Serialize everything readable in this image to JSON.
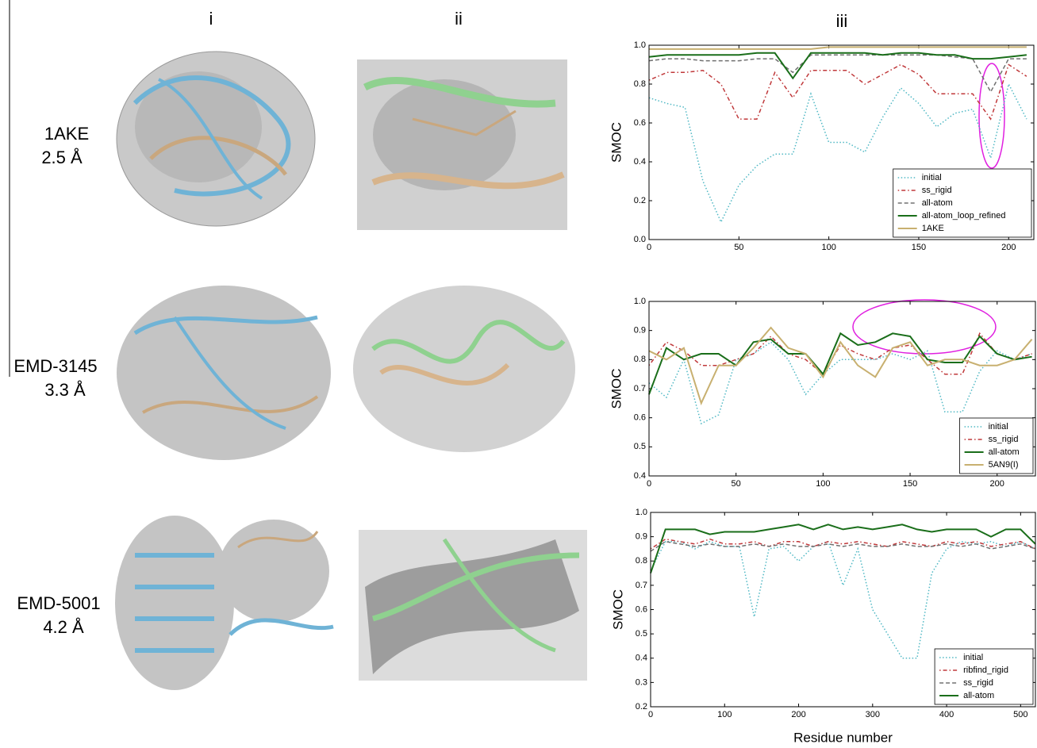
{
  "columns": [
    "i",
    "ii",
    "iii"
  ],
  "rows": [
    {
      "name": "1AKE",
      "resolution": "2.5 Å"
    },
    {
      "name": "EMD-3145",
      "resolution": "3.3 Å"
    },
    {
      "name": "EMD-5001",
      "resolution": "4.2 Å"
    }
  ],
  "chart_data": [
    {
      "type": "line",
      "ylabel": "SMOC",
      "legend": "lower right",
      "x": [
        0,
        10,
        20,
        30,
        40,
        50,
        60,
        70,
        80,
        90,
        100,
        110,
        120,
        130,
        140,
        150,
        160,
        170,
        180,
        190,
        200,
        210
      ],
      "xlim": [
        0,
        214
      ],
      "xticks": [
        0,
        50,
        100,
        150,
        200
      ],
      "ylim": [
        0,
        1
      ],
      "yticks": [
        {
          "value": 0,
          "label": "0.0"
        },
        0.2,
        0.4,
        0.6,
        0.8,
        {
          "value": 1,
          "label": "1.0"
        }
      ],
      "series": [
        {
          "name": "initial",
          "color": "#4fb8c4",
          "linestyle": "dotted",
          "values": [
            0.73,
            0.7,
            0.68,
            0.3,
            0.09,
            0.28,
            0.38,
            0.44,
            0.44,
            0.75,
            0.5,
            0.5,
            0.45,
            0.63,
            0.78,
            0.7,
            0.58,
            0.65,
            0.67,
            0.42,
            0.8,
            0.62
          ]
        },
        {
          "name": "ss_rigid",
          "color": "#c0393b",
          "linestyle": "dashdot",
          "values": [
            0.82,
            0.86,
            0.86,
            0.87,
            0.8,
            0.62,
            0.62,
            0.86,
            0.73,
            0.87,
            0.87,
            0.87,
            0.8,
            0.85,
            0.9,
            0.85,
            0.75,
            0.75,
            0.75,
            0.62,
            0.9,
            0.84
          ]
        },
        {
          "name": "all-atom",
          "color": "#707070",
          "linestyle": "dashed",
          "values": [
            0.92,
            0.93,
            0.93,
            0.92,
            0.92,
            0.92,
            0.93,
            0.93,
            0.86,
            0.95,
            0.95,
            0.95,
            0.95,
            0.95,
            0.95,
            0.95,
            0.95,
            0.94,
            0.93,
            0.76,
            0.93,
            0.93
          ]
        },
        {
          "name": "all-atom_loop_refined",
          "color": "#1a6e1a",
          "linestyle": "solid",
          "values": [
            0.94,
            0.95,
            0.95,
            0.95,
            0.95,
            0.95,
            0.96,
            0.96,
            0.83,
            0.96,
            0.96,
            0.96,
            0.96,
            0.95,
            0.96,
            0.96,
            0.95,
            0.95,
            0.93,
            0.93,
            0.94,
            0.95
          ]
        },
        {
          "name": "1AKE",
          "color": "#c8b070",
          "linestyle": "solid",
          "values": [
            0.98,
            0.98,
            0.98,
            0.98,
            0.98,
            0.98,
            0.98,
            0.98,
            0.98,
            0.98,
            0.99,
            0.99,
            0.99,
            0.99,
            0.99,
            0.99,
            0.99,
            0.99,
            0.99,
            0.99,
            0.99,
            0.99
          ]
        }
      ]
    },
    {
      "type": "line",
      "ylabel": "SMOC",
      "legend": "lower right",
      "x": [
        0,
        10,
        20,
        30,
        40,
        50,
        60,
        70,
        80,
        90,
        100,
        110,
        120,
        130,
        140,
        150,
        160,
        170,
        180,
        190,
        200,
        210,
        220
      ],
      "xlim": [
        0,
        222
      ],
      "xticks": [
        0,
        50,
        100,
        150,
        200
      ],
      "ylim": [
        0.4,
        1
      ],
      "yticks": [
        0.4,
        0.5,
        0.6,
        0.7,
        0.8,
        0.9,
        {
          "value": 1,
          "label": "1.0"
        }
      ],
      "series": [
        {
          "name": "initial",
          "color": "#4fb8c4",
          "linestyle": "dotted",
          "values": [
            0.72,
            0.67,
            0.8,
            0.58,
            0.61,
            0.8,
            0.82,
            0.86,
            0.8,
            0.68,
            0.75,
            0.8,
            0.8,
            0.8,
            0.82,
            0.8,
            0.83,
            0.62,
            0.62,
            0.76,
            0.83,
            0.8,
            0.82
          ]
        },
        {
          "name": "ss_rigid",
          "color": "#c0393b",
          "linestyle": "dashdot",
          "values": [
            0.78,
            0.86,
            0.83,
            0.78,
            0.78,
            0.8,
            0.82,
            0.88,
            0.82,
            0.8,
            0.75,
            0.85,
            0.82,
            0.8,
            0.84,
            0.85,
            0.8,
            0.75,
            0.75,
            0.89,
            0.82,
            0.8,
            0.82
          ]
        },
        {
          "name": "all-atom",
          "color": "#1a6e1a",
          "linestyle": "solid",
          "values": [
            0.68,
            0.84,
            0.8,
            0.82,
            0.82,
            0.78,
            0.86,
            0.87,
            0.82,
            0.82,
            0.75,
            0.89,
            0.85,
            0.86,
            0.89,
            0.88,
            0.8,
            0.79,
            0.79,
            0.88,
            0.82,
            0.8,
            0.81
          ]
        },
        {
          "name": "5AN9(I)",
          "color": "#c8b070",
          "linestyle": "solid",
          "values": [
            0.83,
            0.8,
            0.84,
            0.65,
            0.78,
            0.78,
            0.84,
            0.91,
            0.84,
            0.82,
            0.74,
            0.86,
            0.78,
            0.74,
            0.84,
            0.86,
            0.78,
            0.8,
            0.8,
            0.78,
            0.78,
            0.8,
            0.87
          ]
        }
      ]
    },
    {
      "type": "line",
      "ylabel": "SMOC",
      "xlabel": "Residue number",
      "legend": "lower right",
      "x": [
        0,
        20,
        40,
        60,
        80,
        100,
        120,
        140,
        160,
        180,
        200,
        220,
        240,
        260,
        280,
        300,
        320,
        340,
        360,
        380,
        400,
        420,
        440,
        460,
        480,
        500,
        520
      ],
      "xlim": [
        0,
        520
      ],
      "xticks": [
        0,
        100,
        200,
        300,
        400,
        500
      ],
      "ylim": [
        0.2,
        1
      ],
      "yticks": [
        0.2,
        0.3,
        0.4,
        0.5,
        0.6,
        0.7,
        0.8,
        0.9,
        {
          "value": 1,
          "label": "1.0"
        }
      ],
      "series": [
        {
          "name": "initial",
          "color": "#4fb8c4",
          "linestyle": "dotted",
          "values": [
            0.76,
            0.88,
            0.88,
            0.85,
            0.88,
            0.86,
            0.86,
            0.57,
            0.85,
            0.86,
            0.8,
            0.86,
            0.88,
            0.7,
            0.85,
            0.6,
            0.5,
            0.4,
            0.4,
            0.75,
            0.85,
            0.88,
            0.87,
            0.88,
            0.86,
            0.88,
            0.85
          ]
        },
        {
          "name": "ribfind_rigid",
          "color": "#c0393b",
          "linestyle": "dashdot",
          "values": [
            0.85,
            0.89,
            0.88,
            0.87,
            0.89,
            0.87,
            0.87,
            0.88,
            0.86,
            0.88,
            0.88,
            0.86,
            0.88,
            0.87,
            0.88,
            0.87,
            0.86,
            0.88,
            0.87,
            0.86,
            0.88,
            0.87,
            0.88,
            0.86,
            0.87,
            0.88,
            0.85
          ]
        },
        {
          "name": "ss_rigid",
          "color": "#707070",
          "linestyle": "dashed",
          "values": [
            0.84,
            0.88,
            0.87,
            0.86,
            0.87,
            0.86,
            0.86,
            0.87,
            0.86,
            0.87,
            0.86,
            0.86,
            0.87,
            0.86,
            0.87,
            0.86,
            0.86,
            0.87,
            0.86,
            0.86,
            0.87,
            0.86,
            0.87,
            0.85,
            0.86,
            0.87,
            0.85
          ]
        },
        {
          "name": "all-atom",
          "color": "#1a6e1a",
          "linestyle": "solid",
          "values": [
            0.75,
            0.93,
            0.93,
            0.93,
            0.91,
            0.92,
            0.92,
            0.92,
            0.93,
            0.94,
            0.95,
            0.93,
            0.95,
            0.93,
            0.94,
            0.93,
            0.94,
            0.95,
            0.93,
            0.92,
            0.93,
            0.93,
            0.93,
            0.9,
            0.93,
            0.93,
            0.87
          ]
        }
      ]
    }
  ]
}
